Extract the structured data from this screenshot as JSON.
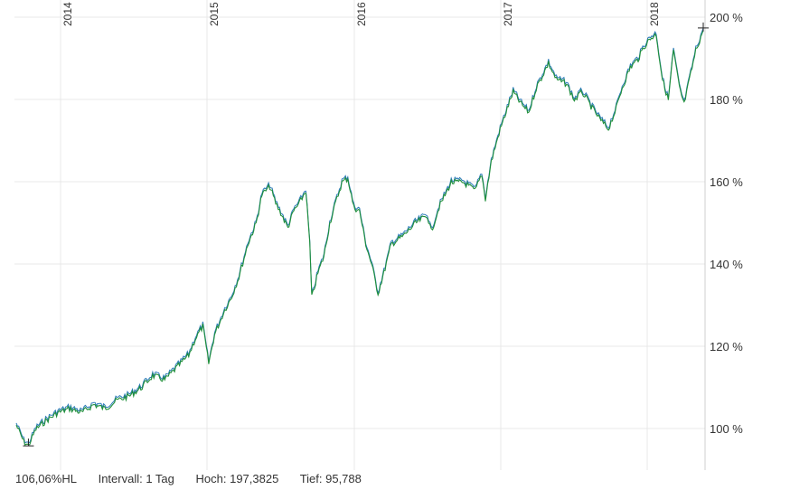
{
  "chart_data": {
    "type": "line",
    "x_ticks": [
      "2014",
      "2015",
      "2016",
      "2017",
      "2018"
    ],
    "y_ticks": [
      "100 %",
      "120 %",
      "140 %",
      "160 %",
      "180 %",
      "200 %"
    ],
    "ylim": [
      90,
      200
    ],
    "x_range": [
      "2013-08",
      "2018-05"
    ],
    "grid": true,
    "colors": {
      "high": "#2a7ab8",
      "low": "#1f8f3a",
      "grid": "#e8e8e8"
    },
    "series": [
      {
        "values": [
          {
            "x": "2013-08-01",
            "y": 101
          },
          {
            "x": "2013-08-20",
            "y": 97
          },
          {
            "x": "2013-09-01",
            "y": 96
          },
          {
            "x": "2013-09-20",
            "y": 100
          },
          {
            "x": "2013-10-15",
            "y": 102
          },
          {
            "x": "2013-11-15",
            "y": 104
          },
          {
            "x": "2013-12-15",
            "y": 105
          },
          {
            "x": "2014-01-15",
            "y": 104
          },
          {
            "x": "2014-02-15",
            "y": 106
          },
          {
            "x": "2014-03-15",
            "y": 105
          },
          {
            "x": "2014-04-15",
            "y": 107
          },
          {
            "x": "2014-05-15",
            "y": 108
          },
          {
            "x": "2014-06-15",
            "y": 110
          },
          {
            "x": "2014-07-15",
            "y": 113
          },
          {
            "x": "2014-08-15",
            "y": 112
          },
          {
            "x": "2014-09-15",
            "y": 115
          },
          {
            "x": "2014-10-15",
            "y": 118
          },
          {
            "x": "2014-11-01",
            "y": 122
          },
          {
            "x": "2014-11-20",
            "y": 125
          },
          {
            "x": "2014-12-05",
            "y": 116
          },
          {
            "x": "2014-12-20",
            "y": 123
          },
          {
            "x": "2015-01-15",
            "y": 129
          },
          {
            "x": "2015-02-01",
            "y": 132
          },
          {
            "x": "2015-02-20",
            "y": 137
          },
          {
            "x": "2015-03-15",
            "y": 145
          },
          {
            "x": "2015-04-05",
            "y": 150
          },
          {
            "x": "2015-04-20",
            "y": 157
          },
          {
            "x": "2015-05-10",
            "y": 159
          },
          {
            "x": "2015-05-25",
            "y": 155
          },
          {
            "x": "2015-06-10",
            "y": 152
          },
          {
            "x": "2015-06-25",
            "y": 149
          },
          {
            "x": "2015-07-10",
            "y": 153
          },
          {
            "x": "2015-07-25",
            "y": 155
          },
          {
            "x": "2015-08-10",
            "y": 158
          },
          {
            "x": "2015-08-20",
            "y": 145
          },
          {
            "x": "2015-08-25",
            "y": 132
          },
          {
            "x": "2015-09-10",
            "y": 138
          },
          {
            "x": "2015-09-25",
            "y": 142
          },
          {
            "x": "2015-10-10",
            "y": 150
          },
          {
            "x": "2015-10-25",
            "y": 155
          },
          {
            "x": "2015-11-10",
            "y": 160
          },
          {
            "x": "2015-11-25",
            "y": 161
          },
          {
            "x": "2015-12-10",
            "y": 154
          },
          {
            "x": "2015-12-25",
            "y": 153
          },
          {
            "x": "2016-01-10",
            "y": 145
          },
          {
            "x": "2016-01-25",
            "y": 140
          },
          {
            "x": "2016-02-10",
            "y": 133
          },
          {
            "x": "2016-02-25",
            "y": 138
          },
          {
            "x": "2016-03-15",
            "y": 145
          },
          {
            "x": "2016-04-15",
            "y": 147
          },
          {
            "x": "2016-05-15",
            "y": 150
          },
          {
            "x": "2016-06-15",
            "y": 152
          },
          {
            "x": "2016-06-25",
            "y": 148
          },
          {
            "x": "2016-07-15",
            "y": 154
          },
          {
            "x": "2016-08-15",
            "y": 160
          },
          {
            "x": "2016-09-15",
            "y": 160
          },
          {
            "x": "2016-10-15",
            "y": 158
          },
          {
            "x": "2016-11-01",
            "y": 162
          },
          {
            "x": "2016-11-10",
            "y": 156
          },
          {
            "x": "2016-11-25",
            "y": 165
          },
          {
            "x": "2016-12-15",
            "y": 172
          },
          {
            "x": "2017-01-05",
            "y": 178
          },
          {
            "x": "2017-01-20",
            "y": 182
          },
          {
            "x": "2017-02-10",
            "y": 179
          },
          {
            "x": "2017-03-01",
            "y": 177
          },
          {
            "x": "2017-03-20",
            "y": 183
          },
          {
            "x": "2017-04-05",
            "y": 186
          },
          {
            "x": "2017-04-20",
            "y": 189
          },
          {
            "x": "2017-05-10",
            "y": 185
          },
          {
            "x": "2017-06-05",
            "y": 184
          },
          {
            "x": "2017-06-25",
            "y": 180
          },
          {
            "x": "2017-07-15",
            "y": 182
          },
          {
            "x": "2017-08-10",
            "y": 178
          },
          {
            "x": "2017-09-01",
            "y": 175
          },
          {
            "x": "2017-09-20",
            "y": 173
          },
          {
            "x": "2017-10-10",
            "y": 178
          },
          {
            "x": "2017-10-25",
            "y": 183
          },
          {
            "x": "2017-11-15",
            "y": 188
          },
          {
            "x": "2017-12-05",
            "y": 190
          },
          {
            "x": "2017-12-20",
            "y": 193
          },
          {
            "x": "2018-01-05",
            "y": 195
          },
          {
            "x": "2018-01-20",
            "y": 196
          },
          {
            "x": "2018-02-05",
            "y": 185
          },
          {
            "x": "2018-02-20",
            "y": 180
          },
          {
            "x": "2018-03-05",
            "y": 192
          },
          {
            "x": "2018-03-20",
            "y": 183
          },
          {
            "x": "2018-04-01",
            "y": 179
          },
          {
            "x": "2018-04-15",
            "y": 185
          },
          {
            "x": "2018-05-01",
            "y": 192
          },
          {
            "x": "2018-05-20",
            "y": 197
          }
        ]
      }
    ],
    "markers": {
      "high": {
        "x": "2018-05-20",
        "y": 197.3825
      },
      "low": {
        "x": "2013-09-01",
        "y": 95.788
      }
    }
  },
  "footer": {
    "change": "106,06%HL",
    "interval": "Intervall: 1 Tag",
    "high": "Hoch: 197,3825",
    "low": "Tief:  95,788"
  }
}
